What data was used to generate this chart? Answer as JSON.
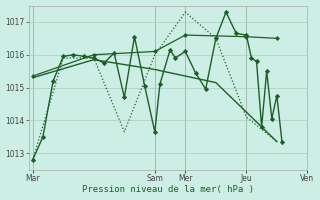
{
  "background_color": "#cceee4",
  "grid_color": "#aaccbb",
  "line_color": "#1e5e28",
  "ylim": [
    1012.5,
    1017.5
  ],
  "yticks": [
    1013,
    1014,
    1015,
    1016,
    1017
  ],
  "xlabel": "Pression niveau de la mer( hPa )",
  "xlim": [
    -3,
    196
  ],
  "day_labels": [
    "Mar",
    "Sam",
    "Mer",
    "Jeu",
    "Ven"
  ],
  "day_positions": [
    0,
    96,
    120,
    168,
    216
  ],
  "vline_positions": [
    0,
    96,
    120,
    168,
    216
  ],
  "series": [
    {
      "x": [
        0,
        8,
        16,
        24,
        32,
        40,
        48,
        56,
        64,
        72,
        80,
        88,
        96,
        100,
        108,
        112,
        120,
        128,
        136,
        144,
        152,
        160,
        168,
        172,
        176,
        180,
        184,
        188,
        192,
        196
      ],
      "y": [
        1012.8,
        1013.5,
        1015.2,
        1015.95,
        1016.0,
        1015.95,
        1015.9,
        1015.75,
        1016.05,
        1014.7,
        1016.55,
        1015.05,
        1013.65,
        1015.1,
        1016.15,
        1015.9,
        1016.1,
        1015.45,
        1014.95,
        1016.5,
        1017.3,
        1016.65,
        1016.6,
        1015.9,
        1015.8,
        1013.8,
        1015.5,
        1014.05,
        1014.75,
        1013.35
      ],
      "linestyle": "-",
      "marker": "D",
      "markersize": 2.2,
      "linewidth": 1.0
    },
    {
      "x": [
        0,
        24,
        48,
        72,
        96,
        120,
        144,
        168,
        192
      ],
      "y": [
        1012.8,
        1015.9,
        1015.9,
        1013.65,
        1016.0,
        1017.3,
        1016.5,
        1014.1,
        1013.35
      ],
      "linestyle": "dotted",
      "marker": null,
      "markersize": 0,
      "linewidth": 0.9
    },
    {
      "x": [
        0,
        48,
        96,
        144,
        192
      ],
      "y": [
        1015.3,
        1015.85,
        1015.55,
        1015.15,
        1013.35
      ],
      "linestyle": "-",
      "marker": null,
      "markersize": 0,
      "linewidth": 1.0
    },
    {
      "x": [
        0,
        48,
        96,
        120,
        168,
        192
      ],
      "y": [
        1015.35,
        1016.0,
        1016.1,
        1016.6,
        1016.55,
        1016.5
      ],
      "linestyle": "-",
      "marker": "D",
      "markersize": 2.0,
      "linewidth": 0.9
    }
  ]
}
